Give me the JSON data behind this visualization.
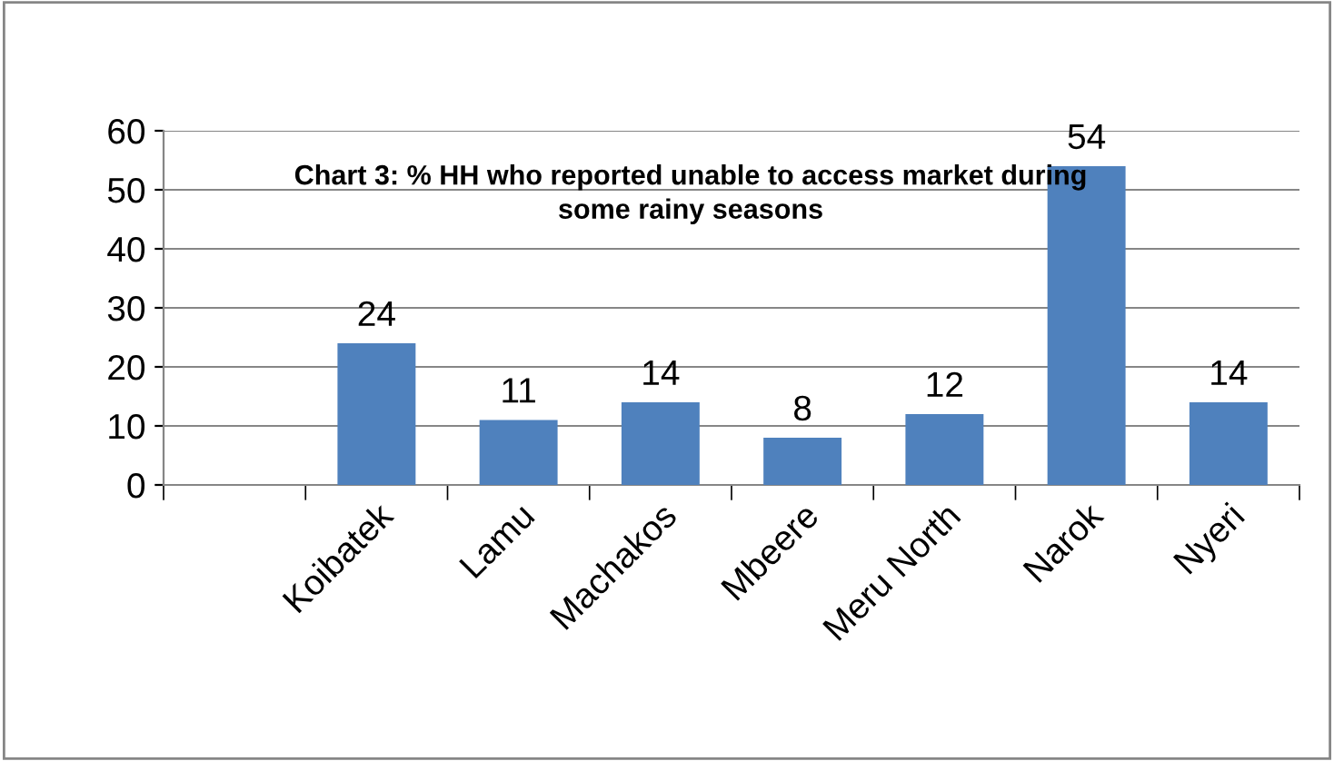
{
  "chart_data": {
    "type": "bar",
    "title": "Chart 3: % HH who reported unable to access market during\nsome rainy seasons",
    "categories": [
      null,
      "Koibatek",
      "Lamu",
      "Machakos",
      "Mbeere",
      "Meru North",
      "Narok",
      "Nyeri"
    ],
    "values": [
      null,
      24,
      11,
      14,
      8,
      12,
      54,
      14
    ],
    "color": "#4f81bd",
    "ylim": [
      0,
      60
    ],
    "yticks": [
      0,
      10,
      20,
      30,
      40,
      50,
      60
    ],
    "grid": "y",
    "data_labels": true,
    "legend": false
  }
}
